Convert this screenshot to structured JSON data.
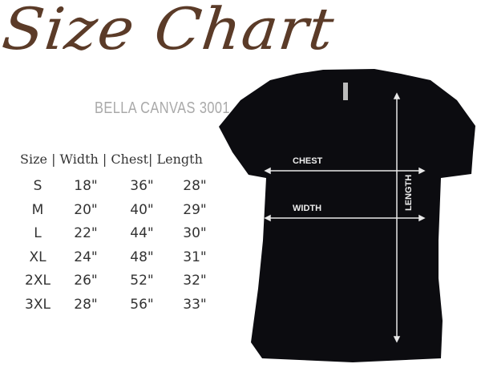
{
  "title": "Size Chart",
  "subtitle": "BELLA CANVAS 3001",
  "table": {
    "header": "Size | Width | Chest| Length",
    "rows": [
      [
        "S",
        "18\"",
        "36\"",
        "28\""
      ],
      [
        "M",
        "20\"",
        "40\"",
        "29\""
      ],
      [
        "L",
        "22\"",
        "44\"",
        "30\""
      ],
      [
        "XL",
        "24\"",
        "48\"",
        "31\""
      ],
      [
        "2XL",
        "26\"",
        "52\"",
        "32\""
      ],
      [
        "3XL",
        "28\"",
        "56\"",
        "33\""
      ]
    ]
  },
  "diagram": {
    "chest_label": "CHEST",
    "width_label": "WIDTH",
    "length_label": "LENGTH"
  },
  "colors": {
    "title": "#5b3b28",
    "subtitle": "#a9a9a9",
    "shirt": "#0c0c10"
  }
}
